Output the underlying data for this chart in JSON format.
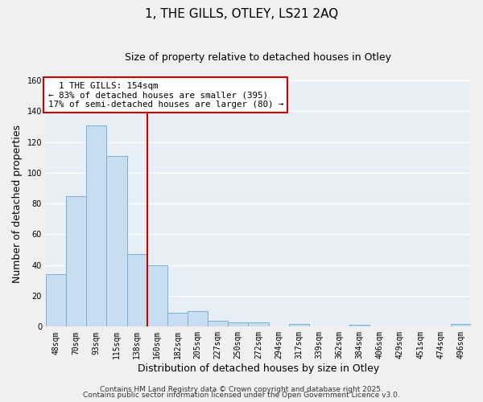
{
  "title": "1, THE GILLS, OTLEY, LS21 2AQ",
  "subtitle": "Size of property relative to detached houses in Otley",
  "xlabel": "Distribution of detached houses by size in Otley",
  "ylabel": "Number of detached properties",
  "bar_labels": [
    "48sqm",
    "70sqm",
    "93sqm",
    "115sqm",
    "138sqm",
    "160sqm",
    "182sqm",
    "205sqm",
    "227sqm",
    "250sqm",
    "272sqm",
    "294sqm",
    "317sqm",
    "339sqm",
    "362sqm",
    "384sqm",
    "406sqm",
    "429sqm",
    "451sqm",
    "474sqm",
    "496sqm"
  ],
  "bar_values": [
    34,
    85,
    131,
    111,
    47,
    40,
    9,
    10,
    4,
    3,
    3,
    0,
    2,
    0,
    0,
    1,
    0,
    0,
    0,
    0,
    2
  ],
  "bar_color": "#c9ddf0",
  "bar_edge_color": "#7bafd4",
  "vline_x_index": 4.5,
  "vline_color": "#cc0000",
  "ylim": [
    0,
    160
  ],
  "yticks": [
    0,
    20,
    40,
    60,
    80,
    100,
    120,
    140,
    160
  ],
  "annotation_title": "1 THE GILLS: 154sqm",
  "annotation_line1": "← 83% of detached houses are smaller (395)",
  "annotation_line2": "17% of semi-detached houses are larger (80) →",
  "annotation_box_color": "#ffffff",
  "annotation_box_edge": "#cc0000",
  "footer1": "Contains HM Land Registry data © Crown copyright and database right 2025.",
  "footer2": "Contains public sector information licensed under the Open Government Licence v3.0.",
  "background_color": "#f0f0f0",
  "plot_bg_color": "#e8eef5",
  "grid_color": "#ffffff",
  "title_fontsize": 11,
  "subtitle_fontsize": 9,
  "axis_label_fontsize": 9,
  "tick_fontsize": 7,
  "footer_fontsize": 6.5,
  "annotation_fontsize": 7.8
}
